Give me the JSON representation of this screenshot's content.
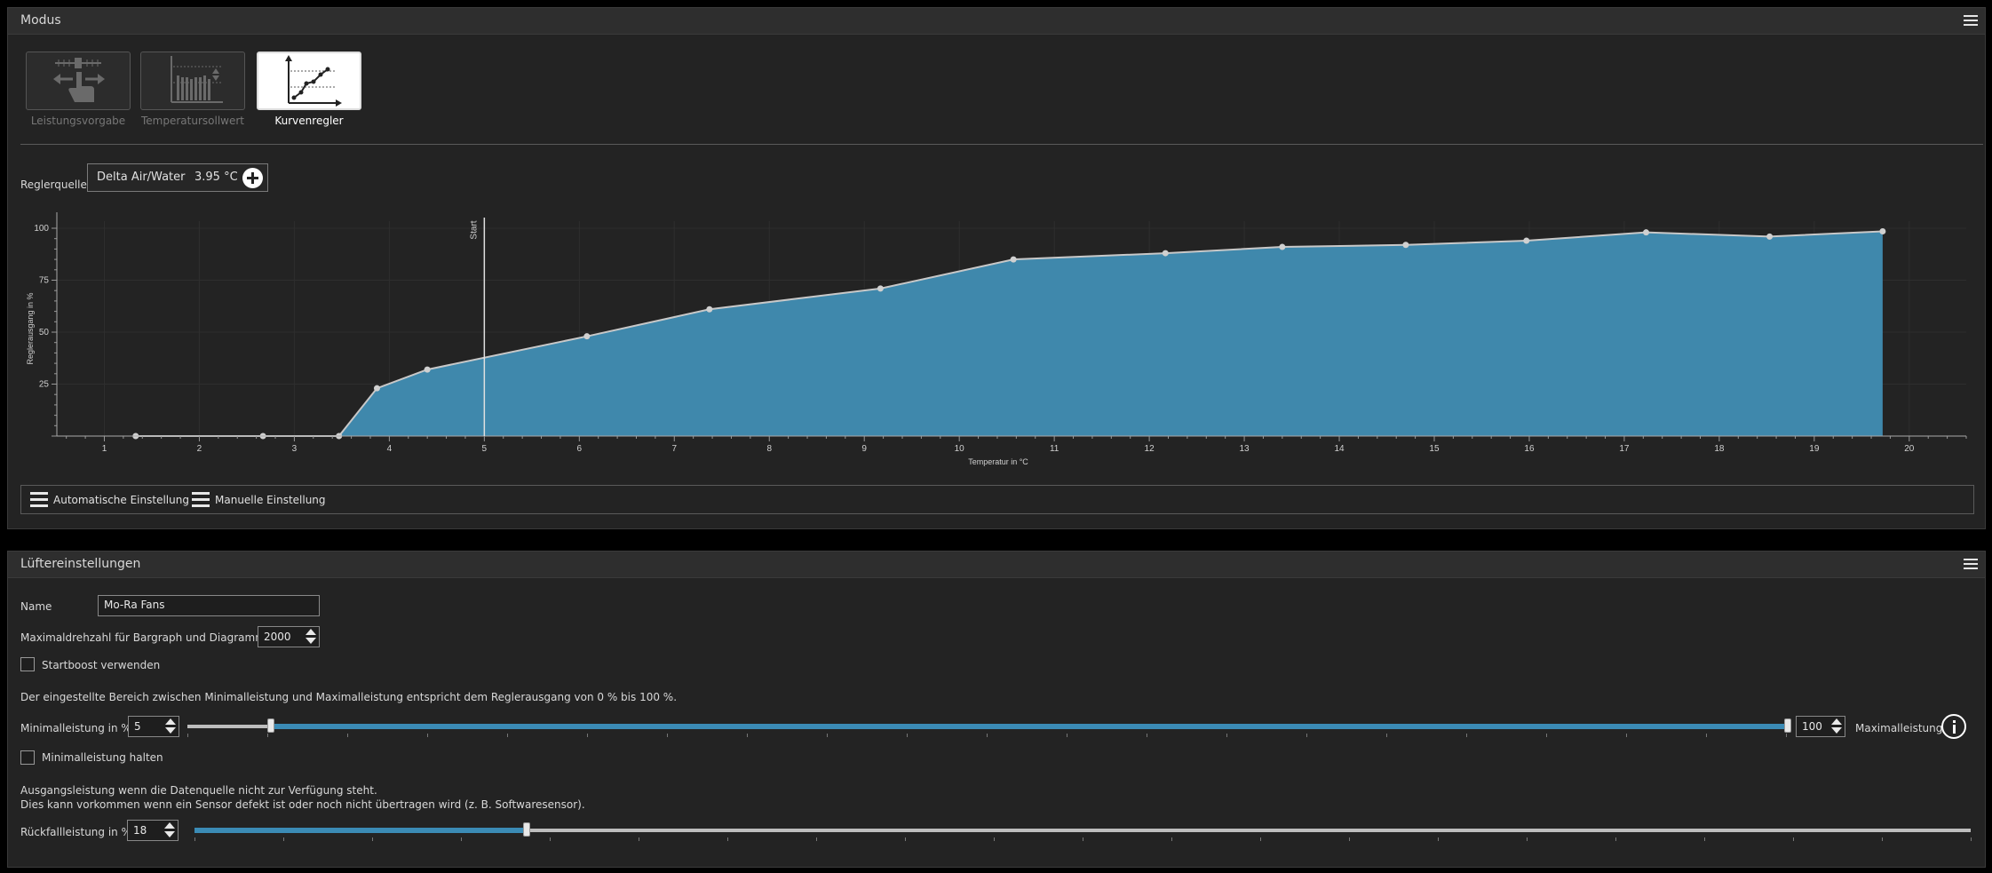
{
  "modus": {
    "title": "Modus",
    "modes": [
      {
        "label": "Leistungsvorgabe",
        "icon": "manual-power-icon",
        "active": false
      },
      {
        "label": "Temperatursollwert",
        "icon": "temperature-setpoint-icon",
        "active": false
      },
      {
        "label": "Kurvenregler",
        "icon": "curve-controller-icon",
        "active": true
      }
    ],
    "source_label": "Reglerquelle",
    "source_name": "Delta Air/Water",
    "source_value": "3.95 °C",
    "toolbar": {
      "auto_label": "Automatische Einstellung",
      "manual_label": "Manuelle Einstellung"
    }
  },
  "chart_data": {
    "type": "area",
    "title": "",
    "xlabel": "Temperatur in °C",
    "ylabel": "Reglerausgang in %",
    "xlim": [
      0.5,
      20.6
    ],
    "ylim": [
      0,
      100
    ],
    "x_ticks": [
      1,
      2,
      3,
      4,
      5,
      6,
      7,
      8,
      9,
      10,
      11,
      12,
      13,
      14,
      15,
      16,
      17,
      18,
      19,
      20
    ],
    "y_ticks": [
      25,
      50,
      75,
      100
    ],
    "grid": true,
    "fill_color": "#3f88ac",
    "line_color": "#c8c8c8",
    "points": [
      [
        1.33,
        0
      ],
      [
        2.67,
        0
      ],
      [
        3.47,
        0
      ],
      [
        3.87,
        23
      ],
      [
        4.4,
        32
      ],
      [
        6.08,
        48
      ],
      [
        7.37,
        61
      ],
      [
        9.17,
        71
      ],
      [
        10.57,
        85
      ],
      [
        12.17,
        88
      ],
      [
        13.4,
        91
      ],
      [
        14.7,
        92
      ],
      [
        15.97,
        94
      ],
      [
        17.23,
        98
      ],
      [
        18.53,
        96
      ],
      [
        19.72,
        98.5
      ]
    ],
    "marker_x": 5,
    "marker_label": "Start"
  },
  "fan": {
    "title": "Lüftereinstellungen",
    "name_label": "Name",
    "name_value": "Mo-Ra Fans",
    "maxrpm_label": "Maximaldrehzahl für Bargraph und Diagramm",
    "maxrpm_value": "2000",
    "startboost_label": "Startboost verwenden",
    "range_text": "Der eingestellte Bereich zwischen Minimalleistung und Maximalleistung entspricht dem Reglerausgang von 0 % bis 100 %.",
    "min_label": "Minimalleistung in %",
    "min_value": "5",
    "max_value": "100",
    "max_label": "Maximalleistung",
    "min_hold_label": "Minimalleistung halten",
    "fallback_text1": "Ausgangsleistung wenn die Datenquelle nicht zur Verfügung steht.",
    "fallback_text2": "Dies kann vorkommen wenn ein Sensor defekt ist oder noch nicht übertragen wird (z. B. Softwaresensor).",
    "fallback_label": "Rückfallleistung in %",
    "fallback_value": "18"
  }
}
